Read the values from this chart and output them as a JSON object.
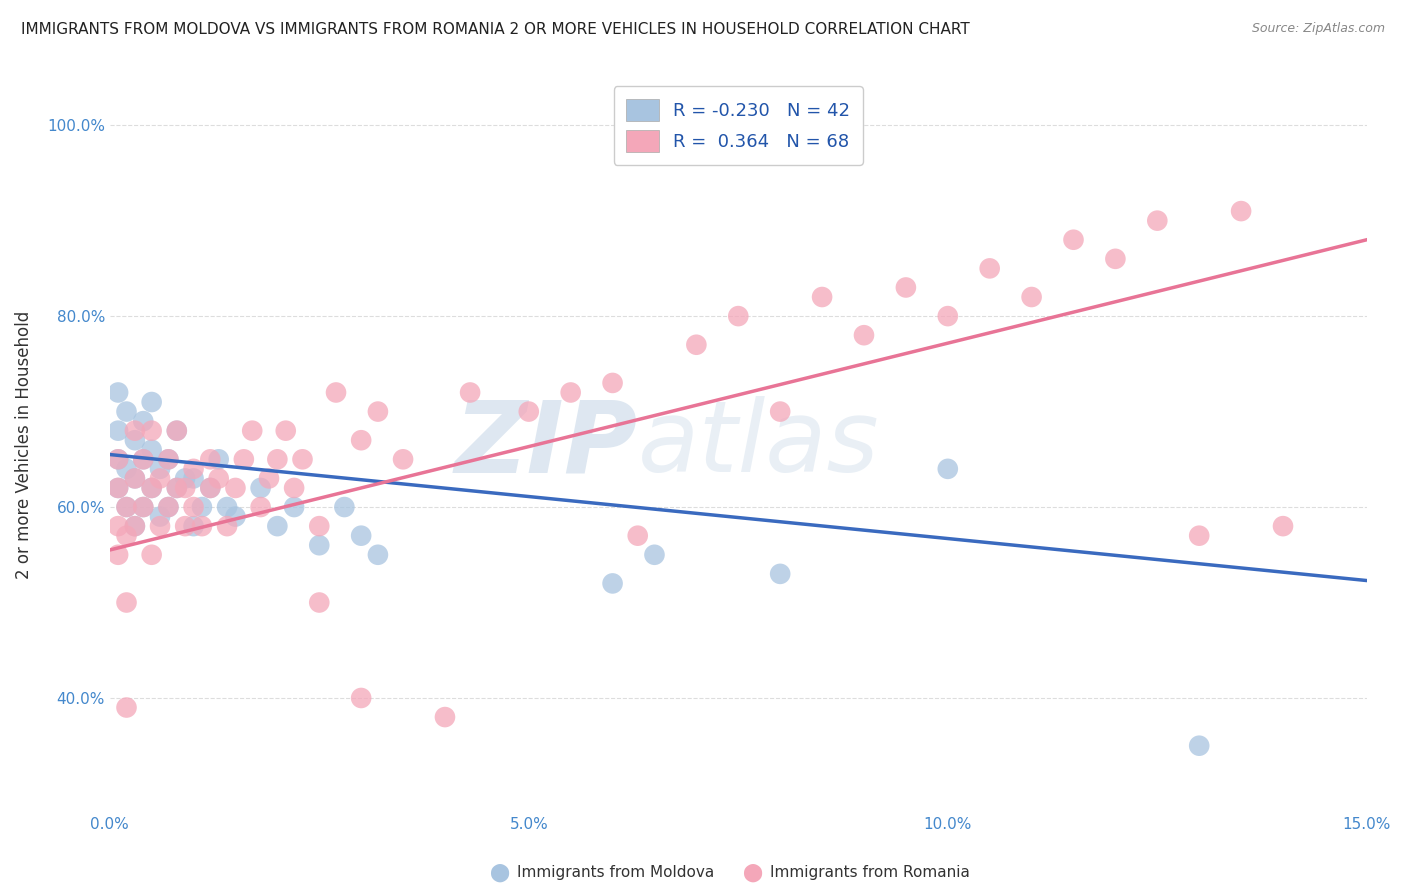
{
  "title": "IMMIGRANTS FROM MOLDOVA VS IMMIGRANTS FROM ROMANIA 2 OR MORE VEHICLES IN HOUSEHOLD CORRELATION CHART",
  "source": "Source: ZipAtlas.com",
  "ylabel": "2 or more Vehicles in Household",
  "xlabel_moldova": "Immigrants from Moldova",
  "xlabel_romania": "Immigrants from Romania",
  "xlim": [
    0.0,
    0.15
  ],
  "ylim": [
    0.28,
    1.05
  ],
  "yticks": [
    0.4,
    0.6,
    0.8,
    1.0
  ],
  "ytick_labels": [
    "40.0%",
    "60.0%",
    "80.0%",
    "100.0%"
  ],
  "xticks": [
    0.0,
    0.05,
    0.1,
    0.15
  ],
  "xtick_labels": [
    "0.0%",
    "5.0%",
    "10.0%",
    "15.0%"
  ],
  "moldova_R": -0.23,
  "moldova_N": 42,
  "romania_R": 0.364,
  "romania_N": 68,
  "color_moldova": "#a8c4e0",
  "color_romania": "#f4a7b9",
  "line_color_moldova": "#3a6abf",
  "line_color_romania": "#e87496",
  "watermark_zip": "ZIP",
  "watermark_atlas": "atlas",
  "watermark_color_zip": "#c8d8e8",
  "watermark_color_atlas": "#c8d8e8",
  "background_color": "#ffffff",
  "grid_color": "#dddddd",
  "moldova_x": [
    0.001,
    0.001,
    0.001,
    0.001,
    0.002,
    0.002,
    0.002,
    0.003,
    0.003,
    0.003,
    0.004,
    0.004,
    0.004,
    0.005,
    0.005,
    0.005,
    0.006,
    0.006,
    0.007,
    0.007,
    0.008,
    0.008,
    0.009,
    0.01,
    0.01,
    0.011,
    0.012,
    0.013,
    0.014,
    0.015,
    0.018,
    0.02,
    0.022,
    0.025,
    0.028,
    0.03,
    0.032,
    0.06,
    0.065,
    0.08,
    0.1,
    0.13
  ],
  "moldova_y": [
    0.62,
    0.65,
    0.68,
    0.72,
    0.6,
    0.64,
    0.7,
    0.58,
    0.63,
    0.67,
    0.6,
    0.65,
    0.69,
    0.62,
    0.66,
    0.71,
    0.59,
    0.64,
    0.6,
    0.65,
    0.62,
    0.68,
    0.63,
    0.58,
    0.63,
    0.6,
    0.62,
    0.65,
    0.6,
    0.59,
    0.62,
    0.58,
    0.6,
    0.56,
    0.6,
    0.57,
    0.55,
    0.52,
    0.55,
    0.53,
    0.64,
    0.35
  ],
  "romania_x": [
    0.001,
    0.001,
    0.001,
    0.001,
    0.002,
    0.002,
    0.002,
    0.003,
    0.003,
    0.003,
    0.004,
    0.004,
    0.005,
    0.005,
    0.005,
    0.006,
    0.006,
    0.007,
    0.007,
    0.008,
    0.008,
    0.009,
    0.009,
    0.01,
    0.01,
    0.011,
    0.012,
    0.012,
    0.013,
    0.014,
    0.015,
    0.016,
    0.017,
    0.018,
    0.019,
    0.02,
    0.021,
    0.022,
    0.023,
    0.025,
    0.027,
    0.03,
    0.032,
    0.035,
    0.04,
    0.043,
    0.05,
    0.055,
    0.06,
    0.063,
    0.07,
    0.075,
    0.08,
    0.085,
    0.09,
    0.095,
    0.1,
    0.105,
    0.11,
    0.115,
    0.12,
    0.125,
    0.13,
    0.135,
    0.025,
    0.03,
    0.002,
    0.14
  ],
  "romania_y": [
    0.62,
    0.65,
    0.58,
    0.55,
    0.6,
    0.57,
    0.5,
    0.58,
    0.63,
    0.68,
    0.6,
    0.65,
    0.55,
    0.62,
    0.68,
    0.58,
    0.63,
    0.6,
    0.65,
    0.62,
    0.68,
    0.58,
    0.62,
    0.6,
    0.64,
    0.58,
    0.62,
    0.65,
    0.63,
    0.58,
    0.62,
    0.65,
    0.68,
    0.6,
    0.63,
    0.65,
    0.68,
    0.62,
    0.65,
    0.58,
    0.72,
    0.67,
    0.7,
    0.65,
    0.38,
    0.72,
    0.7,
    0.72,
    0.73,
    0.57,
    0.77,
    0.8,
    0.7,
    0.82,
    0.78,
    0.83,
    0.8,
    0.85,
    0.82,
    0.88,
    0.86,
    0.9,
    0.57,
    0.91,
    0.5,
    0.4,
    0.39,
    0.58
  ],
  "moldova_line_x": [
    0.0,
    0.15
  ],
  "moldova_line_y": [
    0.655,
    0.523
  ],
  "romania_line_x": [
    0.0,
    0.15
  ],
  "romania_line_y": [
    0.555,
    0.88
  ]
}
